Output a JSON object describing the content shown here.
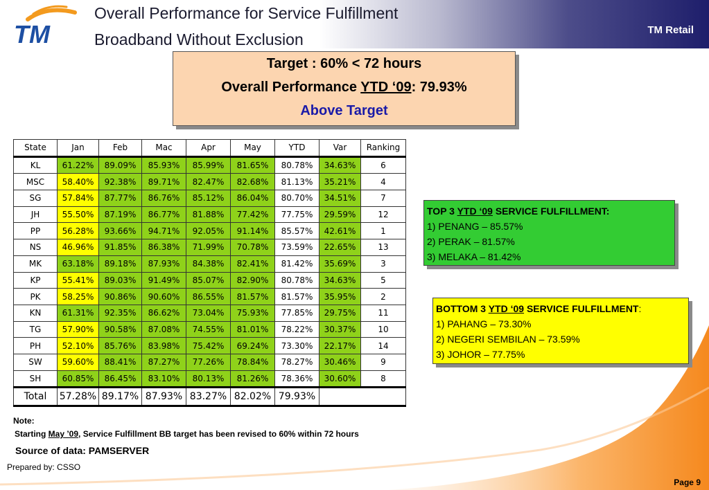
{
  "header": {
    "title_line1": "Overall Performance for Service Fulfillment",
    "title_line2": "Broadband Without Exclusion",
    "brand": "TM Retail",
    "logo_text": "TM"
  },
  "target_box": {
    "line1": "Target : 60% < 72 hours",
    "line2_prefix": "Overall Performance ",
    "line2_ytd": "YTD ‘09",
    "line2_value": ": 79.93%",
    "line3": "Above Target"
  },
  "table": {
    "headers": [
      "State",
      "Jan",
      "Feb",
      "Mac",
      "Apr",
      "May",
      "YTD",
      "Var",
      "Ranking"
    ],
    "rows": [
      [
        "KL",
        "61.22%",
        "89.09%",
        "85.93%",
        "85.99%",
        "81.65%",
        "80.78%",
        "34.63%",
        "6"
      ],
      [
        "MSC",
        "58.40%",
        "92.38%",
        "89.71%",
        "82.47%",
        "82.68%",
        "81.13%",
        "35.21%",
        "4"
      ],
      [
        "SG",
        "57.84%",
        "87.77%",
        "86.76%",
        "85.12%",
        "86.04%",
        "80.70%",
        "34.51%",
        "7"
      ],
      [
        "JH",
        "55.50%",
        "87.19%",
        "86.77%",
        "81.88%",
        "77.42%",
        "77.75%",
        "29.59%",
        "12"
      ],
      [
        "PP",
        "56.28%",
        "93.66%",
        "94.71%",
        "92.05%",
        "91.14%",
        "85.57%",
        "42.61%",
        "1"
      ],
      [
        "NS",
        "46.96%",
        "91.85%",
        "86.38%",
        "71.99%",
        "70.78%",
        "73.59%",
        "22.65%",
        "13"
      ],
      [
        "MK",
        "63.18%",
        "89.18%",
        "87.93%",
        "84.38%",
        "82.41%",
        "81.42%",
        "35.69%",
        "3"
      ],
      [
        "KP",
        "55.41%",
        "89.03%",
        "91.49%",
        "85.07%",
        "82.90%",
        "80.78%",
        "34.63%",
        "5"
      ],
      [
        "PK",
        "58.25%",
        "90.86%",
        "90.60%",
        "86.55%",
        "81.57%",
        "81.57%",
        "35.95%",
        "2"
      ],
      [
        "KN",
        "61.31%",
        "92.35%",
        "86.62%",
        "73.04%",
        "75.93%",
        "77.85%",
        "29.75%",
        "11"
      ],
      [
        "TG",
        "57.90%",
        "90.58%",
        "87.08%",
        "74.55%",
        "81.01%",
        "78.22%",
        "30.37%",
        "10"
      ],
      [
        "PH",
        "52.10%",
        "85.76%",
        "83.98%",
        "75.42%",
        "69.24%",
        "73.30%",
        "22.17%",
        "14"
      ],
      [
        "SW",
        "59.60%",
        "88.41%",
        "87.27%",
        "77.26%",
        "78.84%",
        "78.27%",
        "30.46%",
        "9"
      ],
      [
        "SH",
        "60.85%",
        "86.45%",
        "83.10%",
        "80.13%",
        "81.26%",
        "78.36%",
        "30.60%",
        "8"
      ]
    ],
    "total": [
      "Total",
      "57.28%",
      "89.17%",
      "87.93%",
      "83.27%",
      "82.02%",
      "79.93%",
      "",
      ""
    ],
    "colors": {
      "above_target": "#8fd21a",
      "below_target": "#ffff00"
    }
  },
  "top3": {
    "title_prefix": "TOP 3 ",
    "title_ytd": "YTD ‘09",
    "title_suffix": " SERVICE FULFILLMENT:",
    "items": [
      "1) PENANG – 85.57%",
      "2) PERAK – 81.57%",
      "3) MELAKA – 81.42%"
    ]
  },
  "bottom3": {
    "title_prefix": "BOTTOM 3 ",
    "title_ytd": "YTD ‘09",
    "title_suffix": " SERVICE FULFILLMENT",
    "title_colon": ":",
    "items": [
      "1)  PAHANG – 73.30%",
      "2)  NEGERI SEMBILAN – 73.59%",
      "3)  JOHOR – 77.75%"
    ]
  },
  "note": {
    "label": "Note:",
    "text_prefix": "Starting ",
    "text_date": "May ’09",
    "text_suffix": ", Service Fulfillment BB target has been revised to 60% within 72 hours"
  },
  "source": "Source of data: PAMSERVER",
  "prepared_by": "Prepared by: CSSO",
  "page": "Page 9"
}
